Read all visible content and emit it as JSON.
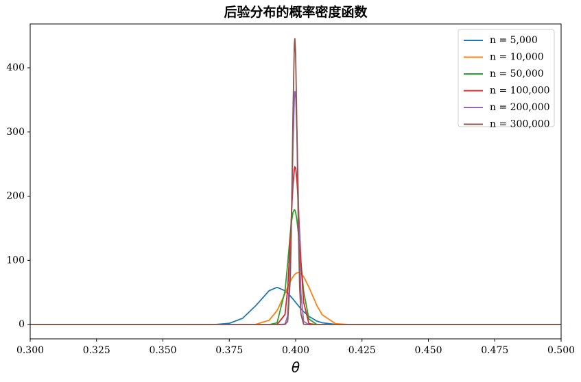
{
  "chart_data": {
    "type": "line",
    "title": "后验分布的概率密度函数",
    "xlabel": "θ",
    "x": [
      0.3,
      0.36,
      0.37,
      0.375,
      0.38,
      0.385,
      0.39,
      0.393,
      0.396,
      0.397,
      0.398,
      0.3985,
      0.399,
      0.3995,
      0.3997,
      0.4,
      0.4005,
      0.401,
      0.4015,
      0.402,
      0.403,
      0.405,
      0.408,
      0.41,
      0.415,
      0.42,
      0.43,
      0.5
    ],
    "series": [
      {
        "name": "n = 5,000",
        "color": "#1f77b4",
        "values": [
          0,
          0,
          0.2,
          1.9,
          9.7,
          29.5,
          52.7,
          58,
          52.7,
          49,
          44.5,
          42.1,
          39.7,
          37.1,
          36.1,
          34.6,
          32,
          29.5,
          27,
          24.6,
          20.2,
          12.7,
          5.4,
          2.8,
          0.35,
          0.03,
          0,
          0
        ]
      },
      {
        "name": "n = 10,000",
        "color": "#ff7f0e",
        "values": [
          0,
          0,
          0,
          0,
          0.01,
          0.4,
          6.7,
          21.7,
          48.4,
          58.3,
          67.3,
          71.2,
          74.6,
          77.3,
          78.2,
          79.4,
          80.6,
          81,
          80.6,
          79.4,
          74.6,
          58.3,
          29.6,
          15.3,
          1.4,
          0.05,
          0,
          0
        ]
      },
      {
        "name": "n = 50,000",
        "color": "#2ca02c",
        "values": [
          0,
          0,
          0,
          0,
          0,
          0,
          0.02,
          2.6,
          52.2,
          95.5,
          142.8,
          162,
          174.6,
          179,
          178.3,
          174.6,
          162,
          142.8,
          119.7,
          95.5,
          52.2,
          8.6,
          0.13,
          0,
          0,
          0,
          0,
          0
        ]
      },
      {
        "name": "n = 100,000",
        "color": "#d62728",
        "values": [
          0,
          0,
          0,
          0,
          0,
          0,
          0,
          0.04,
          15.7,
          55.3,
          132.7,
          178.3,
          217.7,
          241.8,
          245.5,
          244.1,
          224.1,
          187,
          141.9,
          97.9,
          35,
          1.4,
          0,
          0,
          0,
          0,
          0,
          0
        ]
      },
      {
        "name": "n = 200,000",
        "color": "#9467bd",
        "values": [
          0,
          0,
          0,
          0,
          0,
          0,
          0,
          0,
          0.8,
          13.5,
          93.4,
          179.2,
          278.9,
          351.5,
          363.5,
          358.8,
          297.1,
          199,
          108,
          47.6,
          4.9,
          0,
          0,
          0,
          0,
          0,
          0,
          0
        ]
      },
      {
        "name": "n = 300,000",
        "color": "#8c564b",
        "values": [
          0,
          0,
          0,
          0,
          0,
          0,
          0,
          0,
          0.08,
          4.7,
          73.2,
          181.1,
          328.3,
          434.9,
          446,
          421.5,
          298.8,
          155.2,
          58.9,
          16.3,
          0.5,
          0,
          0,
          0,
          0,
          0,
          0,
          0
        ]
      }
    ],
    "xlim": [
      0.3,
      0.5
    ],
    "xticks": [
      {
        "value": 0.3,
        "label": "0.300"
      },
      {
        "value": 0.325,
        "label": "0.325"
      },
      {
        "value": 0.35,
        "label": "0.350"
      },
      {
        "value": 0.375,
        "label": "0.375"
      },
      {
        "value": 0.4,
        "label": "0.400"
      },
      {
        "value": 0.425,
        "label": "0.425"
      },
      {
        "value": 0.45,
        "label": "0.450"
      },
      {
        "value": 0.475,
        "label": "0.475"
      },
      {
        "value": 0.5,
        "label": "0.500"
      }
    ],
    "ylim": [
      -22.3,
      468.3
    ],
    "yticks": [
      0,
      100,
      200,
      300,
      400
    ],
    "legend": "upper right"
  }
}
